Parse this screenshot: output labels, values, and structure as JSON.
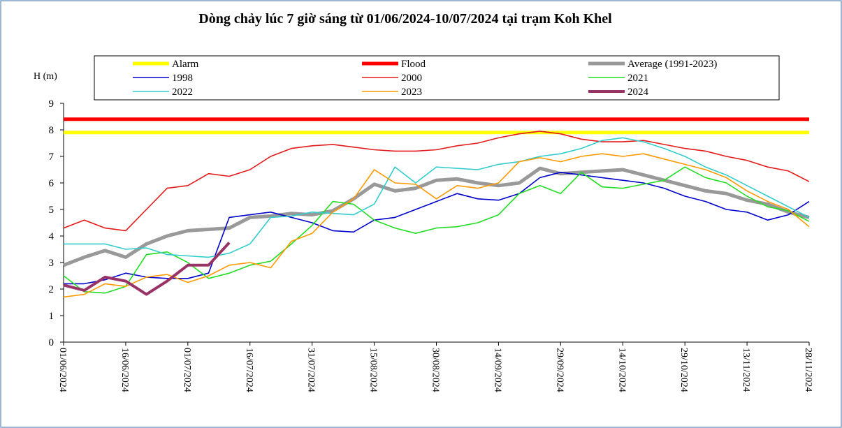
{
  "chart_data": {
    "type": "line",
    "title": "Dòng chảy lúc 7 giờ sáng từ 01/06/2024-10/07/2024 tại trạm Koh Khel",
    "y_label": "H (m)",
    "categories": [
      "01/06/2024",
      null,
      null,
      "16/06/2024",
      null,
      null,
      "01/07/2024",
      null,
      null,
      "16/07/2024",
      null,
      null,
      "31/07/2024",
      null,
      null,
      "15/08/2024",
      null,
      null,
      "30/08/2024",
      null,
      null,
      "14/09/2024",
      null,
      null,
      "29/09/2024",
      null,
      null,
      "14/10/2024",
      null,
      null,
      "29/10/2024",
      null,
      null,
      "13/11/2024",
      null,
      null,
      "28/11/2024"
    ],
    "ylim": [
      0,
      9
    ],
    "yticks": [
      0,
      1,
      2,
      3,
      4,
      5,
      6,
      7,
      8,
      9
    ],
    "series": [
      {
        "name": "Alarm",
        "color": "#ffff00",
        "width": 5,
        "values": [
          7.9,
          7.9,
          7.9,
          7.9,
          7.9,
          7.9,
          7.9,
          7.9,
          7.9,
          7.9,
          7.9,
          7.9,
          7.9,
          7.9,
          7.9,
          7.9,
          7.9,
          7.9,
          7.9,
          7.9,
          7.9,
          7.9,
          7.9,
          7.9,
          7.9,
          7.9,
          7.9,
          7.9,
          7.9,
          7.9,
          7.9,
          7.9,
          7.9,
          7.9,
          7.9,
          7.9,
          7.9
        ]
      },
      {
        "name": "Flood",
        "color": "#ff0000",
        "width": 5,
        "values": [
          8.4,
          8.4,
          8.4,
          8.4,
          8.4,
          8.4,
          8.4,
          8.4,
          8.4,
          8.4,
          8.4,
          8.4,
          8.4,
          8.4,
          8.4,
          8.4,
          8.4,
          8.4,
          8.4,
          8.4,
          8.4,
          8.4,
          8.4,
          8.4,
          8.4,
          8.4,
          8.4,
          8.4,
          8.4,
          8.4,
          8.4,
          8.4,
          8.4,
          8.4,
          8.4,
          8.4,
          8.4
        ]
      },
      {
        "name": "Average (1991-2023)",
        "color": "#999999",
        "width": 5,
        "values": [
          2.9,
          3.2,
          3.45,
          3.2,
          3.7,
          4.0,
          4.2,
          4.25,
          4.3,
          4.7,
          4.75,
          4.85,
          4.8,
          4.95,
          5.4,
          5.95,
          5.7,
          5.8,
          6.1,
          6.15,
          6.0,
          5.9,
          6.0,
          6.55,
          6.35,
          6.4,
          6.45,
          6.5,
          6.3,
          6.1,
          5.9,
          5.7,
          5.6,
          5.35,
          5.2,
          4.9,
          4.7
        ]
      },
      {
        "name": "1998",
        "color": "#0000cc",
        "width": 1.6,
        "values": [
          2.2,
          2.2,
          2.35,
          2.6,
          2.45,
          2.4,
          2.4,
          2.6,
          4.7,
          4.8,
          4.9,
          4.7,
          4.5,
          4.2,
          4.15,
          4.6,
          4.7,
          5.0,
          5.3,
          5.6,
          5.4,
          5.35,
          5.6,
          6.2,
          6.4,
          6.3,
          6.2,
          6.1,
          6.0,
          5.8,
          5.5,
          5.3,
          5.0,
          4.9,
          4.6,
          4.8,
          5.3
        ]
      },
      {
        "name": "2000",
        "color": "#e41a1a",
        "width": 1.6,
        "values": [
          4.3,
          4.6,
          4.3,
          4.2,
          5.0,
          5.8,
          5.9,
          6.35,
          6.25,
          6.5,
          7.0,
          7.3,
          7.4,
          7.45,
          7.35,
          7.25,
          7.2,
          7.2,
          7.25,
          7.4,
          7.5,
          7.7,
          7.85,
          7.95,
          7.85,
          7.65,
          7.55,
          7.55,
          7.6,
          7.45,
          7.3,
          7.2,
          7.0,
          6.85,
          6.6,
          6.45,
          6.05
        ]
      },
      {
        "name": "2021",
        "color": "#22dd22",
        "width": 1.6,
        "values": [
          2.5,
          1.9,
          1.85,
          2.1,
          3.3,
          3.4,
          3.0,
          2.4,
          2.6,
          2.9,
          3.05,
          3.7,
          4.4,
          5.3,
          5.2,
          4.6,
          4.3,
          4.1,
          4.3,
          4.35,
          4.5,
          4.8,
          5.6,
          5.9,
          5.6,
          6.4,
          5.85,
          5.8,
          5.95,
          6.1,
          6.6,
          6.2,
          6.0,
          5.5,
          5.1,
          4.95,
          4.55
        ]
      },
      {
        "name": "2022",
        "color": "#33cccc",
        "width": 1.6,
        "values": [
          3.7,
          3.7,
          3.7,
          3.5,
          3.55,
          3.3,
          3.25,
          3.2,
          3.35,
          3.7,
          4.7,
          4.75,
          4.9,
          4.85,
          4.8,
          5.2,
          6.6,
          6.0,
          6.6,
          6.55,
          6.5,
          6.7,
          6.8,
          7.0,
          7.1,
          7.3,
          7.6,
          7.7,
          7.55,
          7.3,
          7.0,
          6.6,
          6.3,
          5.9,
          5.5,
          5.1,
          4.7
        ]
      },
      {
        "name": "2023",
        "color": "#ff9900",
        "width": 1.6,
        "values": [
          1.7,
          1.8,
          2.2,
          2.1,
          2.45,
          2.55,
          2.25,
          2.5,
          2.9,
          3.0,
          2.8,
          3.8,
          4.1,
          4.9,
          5.4,
          6.5,
          6.0,
          5.95,
          5.4,
          5.9,
          5.8,
          6.0,
          6.8,
          6.95,
          6.8,
          7.0,
          7.1,
          7.0,
          7.1,
          6.9,
          6.7,
          6.5,
          6.2,
          5.7,
          5.3,
          5.0,
          4.35
        ]
      },
      {
        "name": "2024",
        "color": "#993366",
        "width": 4,
        "values": [
          2.15,
          1.95,
          2.45,
          2.3,
          1.8,
          2.3,
          2.9,
          2.9,
          3.75,
          null,
          null,
          null,
          null,
          null,
          null,
          null,
          null,
          null,
          null,
          null,
          null,
          null,
          null,
          null,
          null,
          null,
          null,
          null,
          null,
          null,
          null,
          null,
          null,
          null,
          null,
          null,
          null
        ]
      }
    ]
  }
}
